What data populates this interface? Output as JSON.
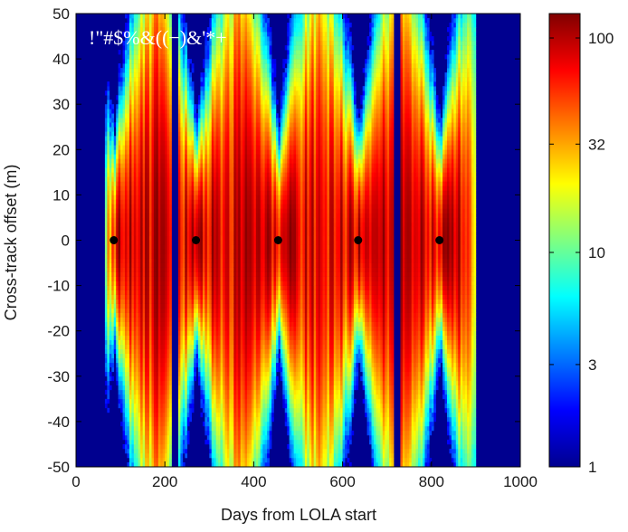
{
  "chart_data": {
    "type": "heatmap",
    "title": "",
    "overlay_text": "!\"#$%&((−)&'*+",
    "xlabel": "Days from LOLA start",
    "ylabel": "Cross-track offset (m)",
    "xlim": [
      0,
      1000
    ],
    "ylim": [
      -50,
      50
    ],
    "x_ticks": [
      0,
      200,
      400,
      600,
      800,
      1000
    ],
    "y_ticks": [
      -50,
      -40,
      -30,
      -20,
      -10,
      0,
      10,
      20,
      30,
      40,
      50
    ],
    "colorbar": {
      "scale": "log",
      "range": [
        1,
        130
      ],
      "ticks": [
        1,
        3,
        10,
        32,
        100
      ],
      "colormap": "jet"
    },
    "data_extent_days": [
      60,
      900
    ],
    "gaps_days": [
      220,
      720
    ],
    "markers": {
      "color": "#000000",
      "points": [
        {
          "x": 85,
          "y": 0
        },
        {
          "x": 270,
          "y": 0
        },
        {
          "x": 455,
          "y": 0
        },
        {
          "x": 635,
          "y": 0
        },
        {
          "x": 818,
          "y": 0
        }
      ]
    },
    "background_color": "#00008f"
  }
}
